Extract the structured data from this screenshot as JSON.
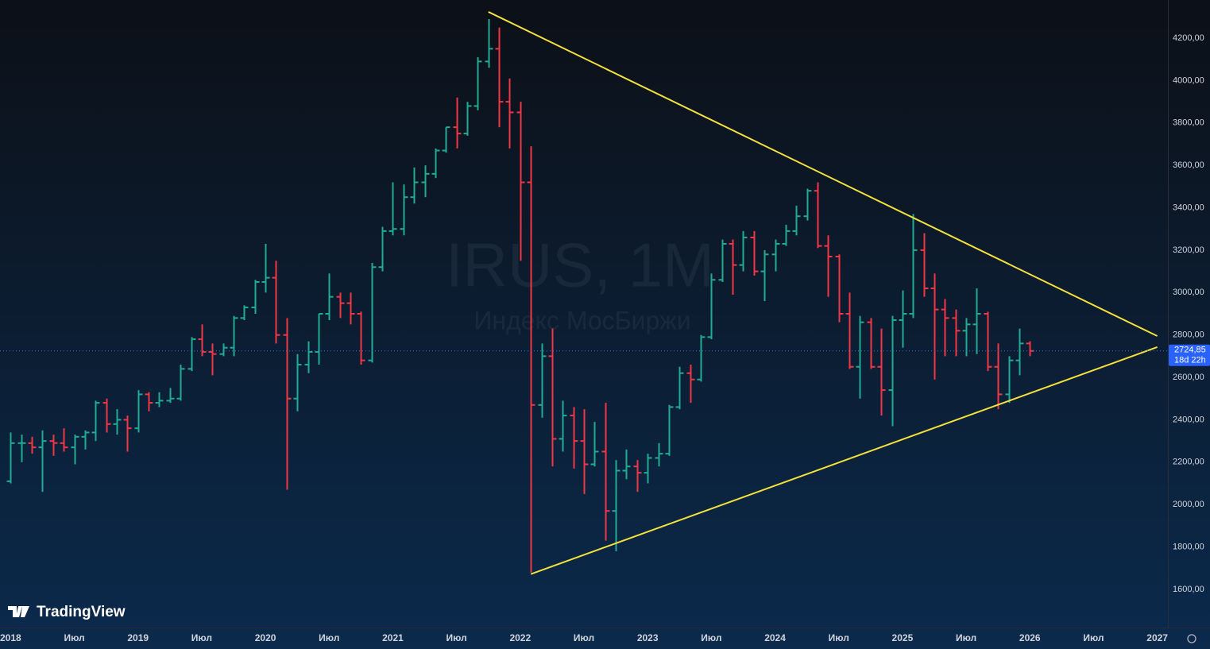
{
  "chart_data": {
    "type": "ohlc",
    "watermark": "IRUS, 1M",
    "subtitle": "Индекс МосБиржи",
    "brand": "TradingView",
    "up_color": "#22ab94",
    "down_color": "#f23645",
    "grid": false,
    "x": [
      "2018-01",
      "2018-02",
      "2018-03",
      "2018-04",
      "2018-05",
      "2018-06",
      "2018-07",
      "2018-08",
      "2018-09",
      "2018-10",
      "2018-11",
      "2018-12",
      "2019-01",
      "2019-02",
      "2019-03",
      "2019-04",
      "2019-05",
      "2019-06",
      "2019-07",
      "2019-08",
      "2019-09",
      "2019-10",
      "2019-11",
      "2019-12",
      "2020-01",
      "2020-02",
      "2020-03",
      "2020-04",
      "2020-05",
      "2020-06",
      "2020-07",
      "2020-08",
      "2020-09",
      "2020-10",
      "2020-11",
      "2020-12",
      "2021-01",
      "2021-02",
      "2021-03",
      "2021-04",
      "2021-05",
      "2021-06",
      "2021-07",
      "2021-08",
      "2021-09",
      "2021-10",
      "2021-11",
      "2021-12",
      "2022-01",
      "2022-02",
      "2022-03",
      "2022-04",
      "2022-05",
      "2022-06",
      "2022-07",
      "2022-08",
      "2022-09",
      "2022-10",
      "2022-11",
      "2022-12",
      "2023-01",
      "2023-02",
      "2023-03",
      "2023-04",
      "2023-05",
      "2023-06",
      "2023-07",
      "2023-08",
      "2023-09",
      "2023-10",
      "2023-11",
      "2023-12",
      "2024-01",
      "2024-02",
      "2024-03",
      "2024-04",
      "2024-05",
      "2024-06",
      "2024-07",
      "2024-08",
      "2024-09",
      "2024-10",
      "2024-11",
      "2024-12",
      "2025-01",
      "2025-02",
      "2025-03",
      "2025-04",
      "2025-05",
      "2025-06",
      "2025-07",
      "2025-08",
      "2025-09",
      "2025-10",
      "2025-11",
      "2025-12",
      "2026-01"
    ],
    "open": [
      2110,
      2290,
      2290,
      2270,
      2300,
      2290,
      2270,
      2320,
      2340,
      2480,
      2380,
      2400,
      2360,
      2520,
      2480,
      2490,
      2500,
      2640,
      2780,
      2720,
      2710,
      2740,
      2880,
      2930,
      3050,
      3070,
      2800,
      2500,
      2660,
      2720,
      2900,
      2980,
      2950,
      2900,
      2680,
      3120,
      3290,
      3300,
      3450,
      3520,
      3560,
      3670,
      3780,
      3750,
      3880,
      4090,
      4150,
      3900,
      3850,
      3520,
      2470,
      2700,
      2310,
      2420,
      2300,
      2190,
      2250,
      1970,
      2160,
      2180,
      2150,
      2220,
      2240,
      2460,
      2620,
      2590,
      2790,
      3060,
      3230,
      3130,
      3260,
      3100,
      3180,
      3230,
      3290,
      3360,
      3480,
      3220,
      3170,
      2900,
      2650,
      2860,
      2650,
      2540,
      2870,
      2900,
      3200,
      3020,
      2920,
      2880,
      2820,
      2850,
      2900,
      2650,
      2520,
      2680,
      2760
    ],
    "high": [
      2340,
      2330,
      2320,
      2350,
      2330,
      2360,
      2330,
      2350,
      2490,
      2500,
      2450,
      2420,
      2540,
      2530,
      2530,
      2550,
      2660,
      2790,
      2850,
      2760,
      2760,
      2890,
      2940,
      3060,
      3230,
      3150,
      2880,
      2710,
      2770,
      2900,
      3090,
      3000,
      3000,
      2910,
      3140,
      3310,
      3520,
      3510,
      3590,
      3600,
      3680,
      3780,
      3920,
      3900,
      4110,
      4290,
      4250,
      4010,
      3900,
      3690,
      2760,
      2830,
      2490,
      2460,
      2450,
      2390,
      2480,
      2210,
      2260,
      2210,
      2240,
      2290,
      2470,
      2650,
      2660,
      2800,
      3090,
      3250,
      3250,
      3290,
      3290,
      3200,
      3250,
      3320,
      3410,
      3490,
      3520,
      3270,
      3180,
      3000,
      2890,
      2880,
      2830,
      2890,
      3010,
      3370,
      3280,
      3090,
      2970,
      2920,
      2880,
      3020,
      2910,
      2760,
      2700,
      2830,
      2770
    ],
    "low": [
      2100,
      2200,
      2240,
      2060,
      2230,
      2250,
      2190,
      2260,
      2300,
      2340,
      2330,
      2250,
      2340,
      2440,
      2460,
      2480,
      2490,
      2630,
      2700,
      2610,
      2700,
      2700,
      2870,
      2900,
      3000,
      2760,
      2070,
      2440,
      2620,
      2660,
      2870,
      2880,
      2850,
      2660,
      2670,
      3100,
      3270,
      3270,
      3420,
      3450,
      3540,
      3660,
      3680,
      3740,
      3860,
      4060,
      3780,
      3680,
      3150,
      1680,
      2410,
      2180,
      2250,
      2170,
      2050,
      2180,
      1830,
      1780,
      2120,
      2060,
      2100,
      2180,
      2230,
      2450,
      2480,
      2580,
      2780,
      3050,
      2990,
      3100,
      3080,
      2960,
      3100,
      3220,
      3270,
      3340,
      3210,
      2980,
      2860,
      2640,
      2500,
      2640,
      2420,
      2370,
      2740,
      2880,
      2980,
      2590,
      2700,
      2700,
      2700,
      2710,
      2630,
      2450,
      2480,
      2610,
      2700
    ],
    "close": [
      2290,
      2290,
      2270,
      2300,
      2290,
      2270,
      2320,
      2340,
      2480,
      2380,
      2400,
      2360,
      2520,
      2480,
      2490,
      2500,
      2640,
      2780,
      2720,
      2710,
      2740,
      2880,
      2930,
      3050,
      3070,
      2800,
      2500,
      2660,
      2720,
      2900,
      2980,
      2950,
      2900,
      2680,
      3120,
      3290,
      3300,
      3450,
      3520,
      3560,
      3670,
      3780,
      3750,
      3880,
      4090,
      4150,
      3900,
      3850,
      3520,
      2470,
      2700,
      2310,
      2420,
      2300,
      2190,
      2250,
      1970,
      2160,
      2180,
      2150,
      2220,
      2240,
      2460,
      2620,
      2590,
      2790,
      3060,
      3230,
      3130,
      3260,
      3100,
      3180,
      3230,
      3290,
      3360,
      3480,
      3220,
      3170,
      2900,
      2650,
      2860,
      2650,
      2540,
      2870,
      2900,
      3200,
      3020,
      2920,
      2880,
      2820,
      2850,
      2900,
      2650,
      2520,
      2680,
      2760,
      2724.85
    ],
    "last_price": {
      "value": 2724.85,
      "label": "2724,85"
    },
    "countdown": "18d 22h",
    "trendlines": [
      {
        "color": "#f5e13c",
        "x": [
          "2021-10",
          "2027-01"
        ],
        "y": [
          4324,
          2795
        ]
      },
      {
        "color": "#f5e13c",
        "x": [
          "2022-02",
          "2027-01"
        ],
        "y": [
          1672,
          2743
        ]
      }
    ],
    "xlim": [
      "2017-12",
      "2027-02"
    ],
    "xticks": [
      {
        "value": "2018-01",
        "label": "2018"
      },
      {
        "value": "2018-07",
        "label": "Июл"
      },
      {
        "value": "2019-01",
        "label": "2019"
      },
      {
        "value": "2019-07",
        "label": "Июл"
      },
      {
        "value": "2020-01",
        "label": "2020"
      },
      {
        "value": "2020-07",
        "label": "Июл"
      },
      {
        "value": "2021-01",
        "label": "2021"
      },
      {
        "value": "2021-07",
        "label": "Июл"
      },
      {
        "value": "2022-01",
        "label": "2022"
      },
      {
        "value": "2022-07",
        "label": "Июл"
      },
      {
        "value": "2023-01",
        "label": "2023"
      },
      {
        "value": "2023-07",
        "label": "Июл"
      },
      {
        "value": "2024-01",
        "label": "2024"
      },
      {
        "value": "2024-07",
        "label": "Июл"
      },
      {
        "value": "2025-01",
        "label": "2025"
      },
      {
        "value": "2025-07",
        "label": "Июл"
      },
      {
        "value": "2026-01",
        "label": "2026"
      },
      {
        "value": "2026-07",
        "label": "Июл"
      },
      {
        "value": "2027-01",
        "label": "2027"
      }
    ],
    "ylim": [
      1420,
      4380
    ],
    "yticks": [
      {
        "value": 1600,
        "label": "1600,00"
      },
      {
        "value": 1800,
        "label": "1800,00"
      },
      {
        "value": 2000,
        "label": "2000,00"
      },
      {
        "value": 2200,
        "label": "2200,00"
      },
      {
        "value": 2400,
        "label": "2400,00"
      },
      {
        "value": 2600,
        "label": "2600,00"
      },
      {
        "value": 2800,
        "label": "2800,00"
      },
      {
        "value": 3000,
        "label": "3000,00"
      },
      {
        "value": 3200,
        "label": "3200,00"
      },
      {
        "value": 3400,
        "label": "3400,00"
      },
      {
        "value": 3600,
        "label": "3600,00"
      },
      {
        "value": 3800,
        "label": "3800,00"
      },
      {
        "value": 4000,
        "label": "4000,00"
      },
      {
        "value": 4200,
        "label": "4200,00"
      }
    ]
  }
}
